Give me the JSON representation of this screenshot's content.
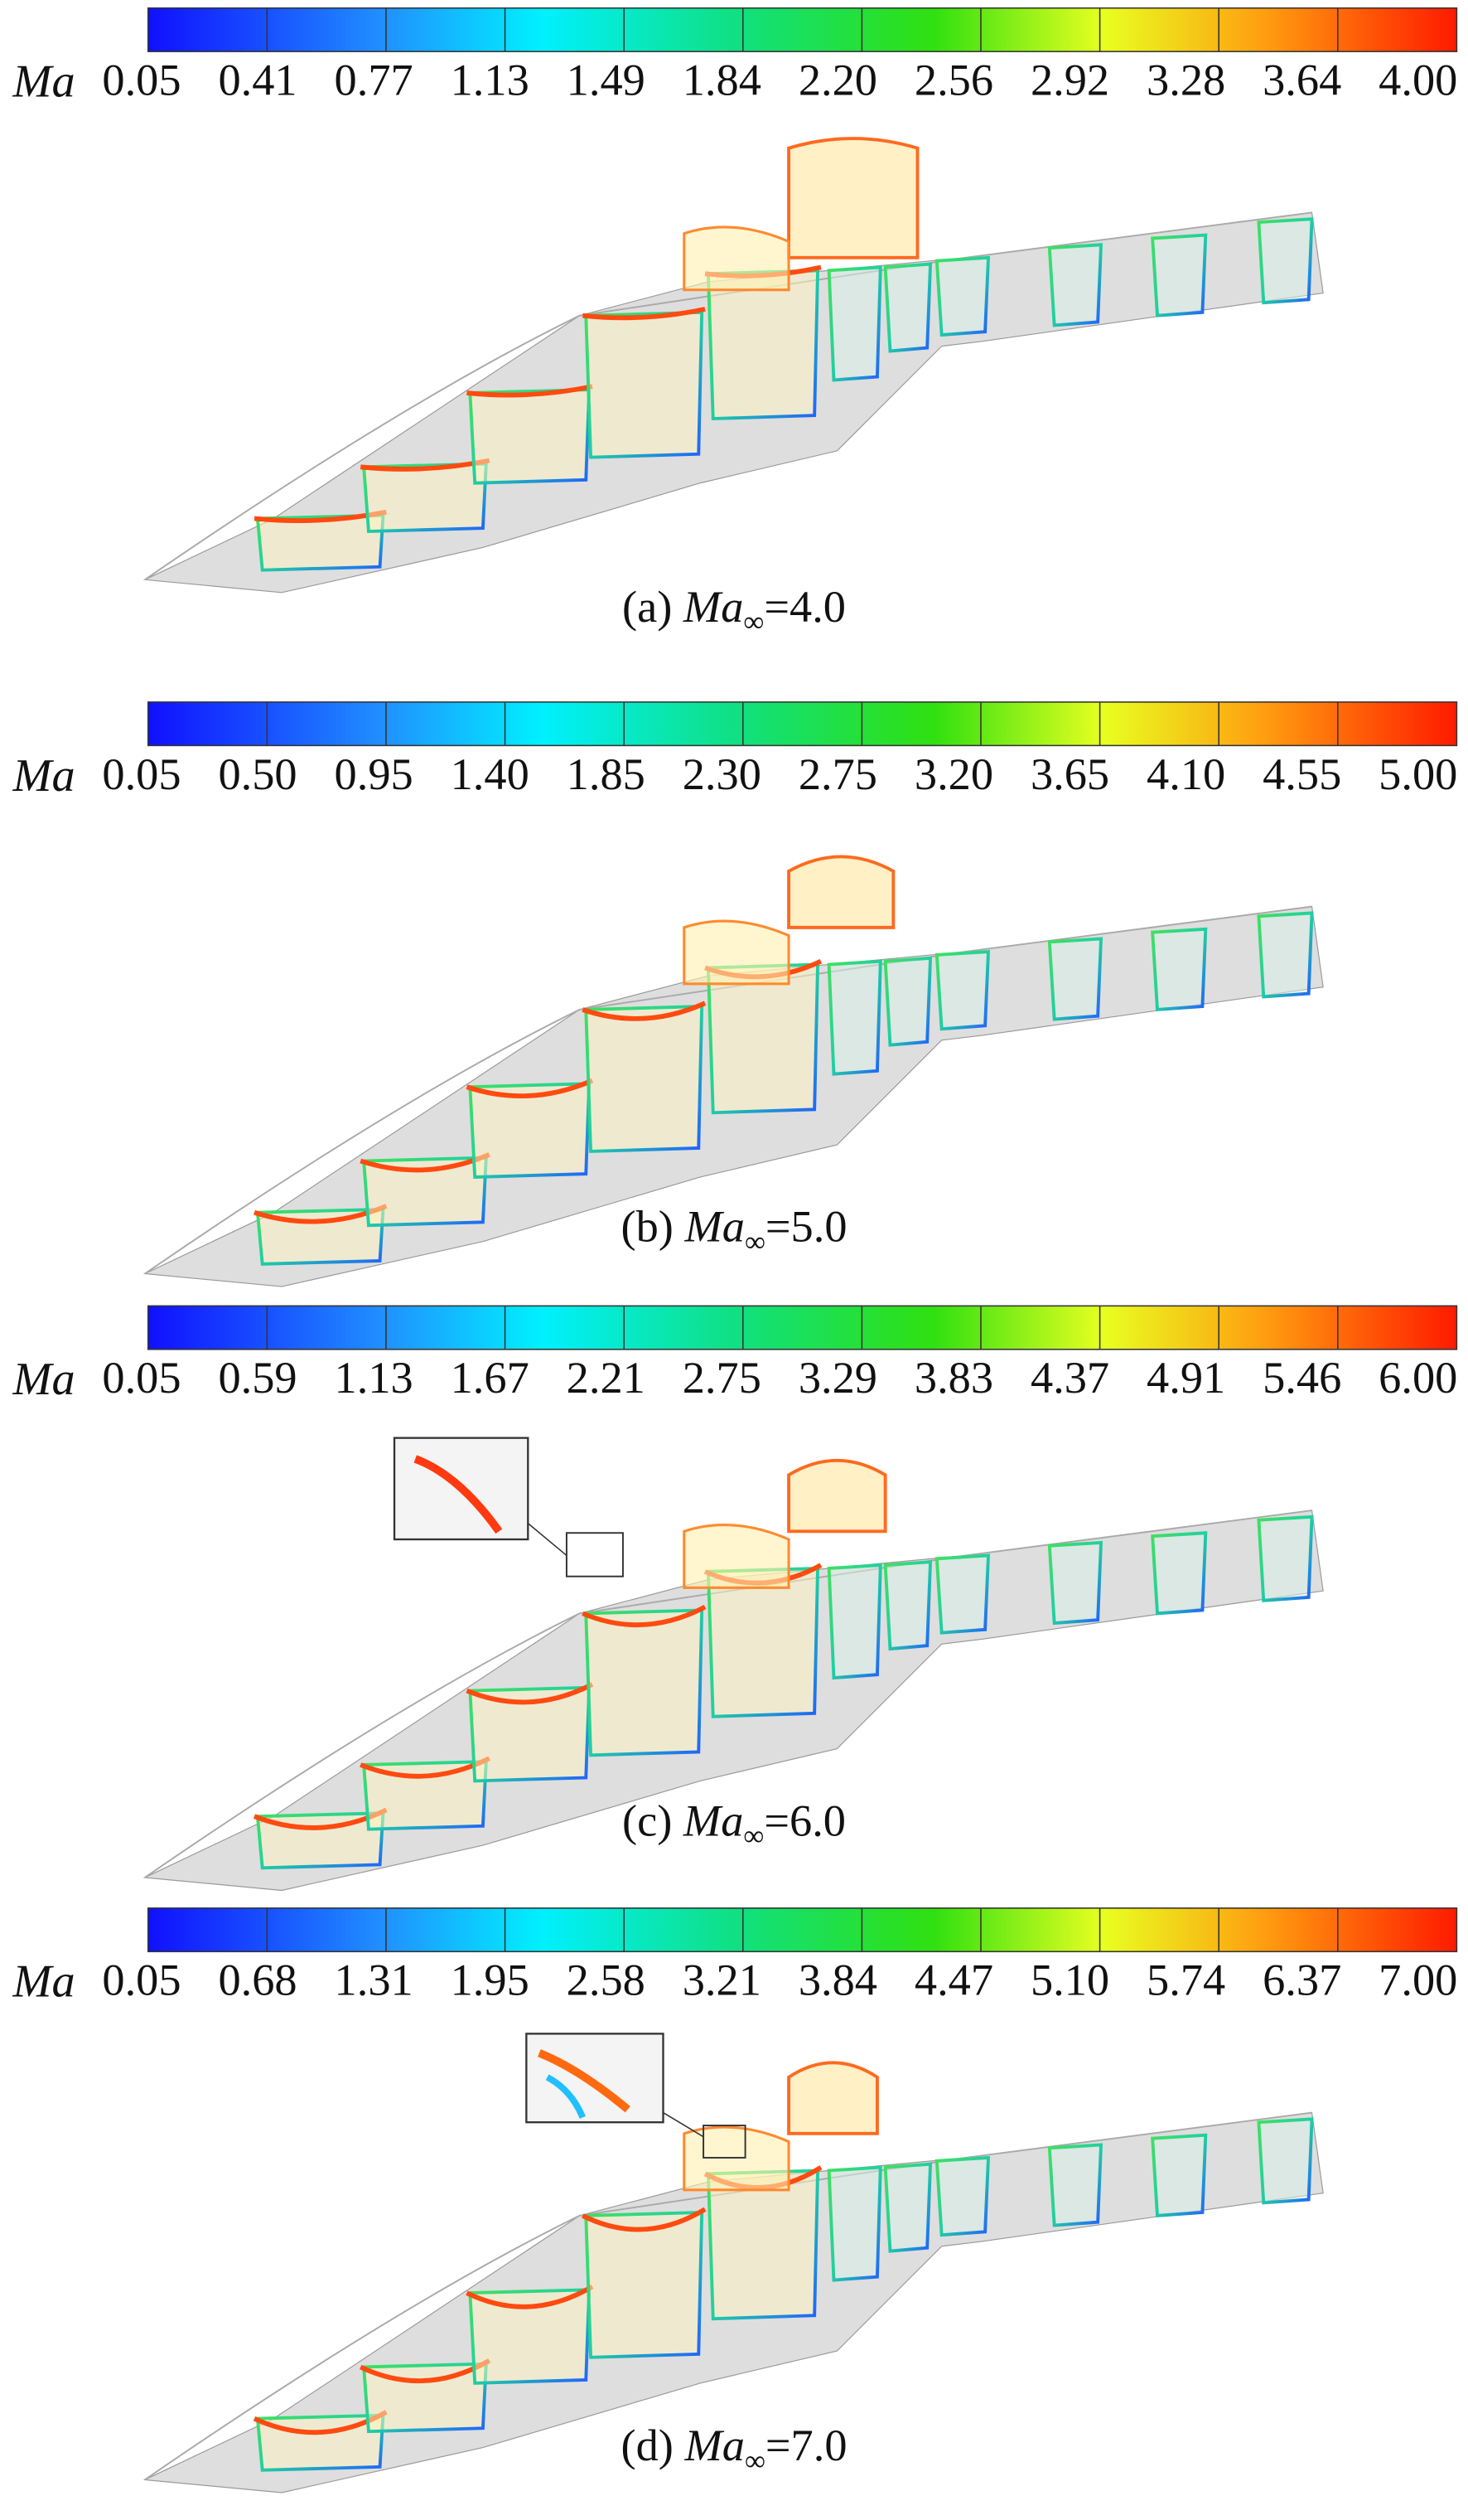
{
  "panels": [
    {
      "colorbar": {
        "label": "Ma",
        "ticks": [
          "0.05",
          "0.41",
          "0.77",
          "1.13",
          "1.49",
          "1.84",
          "2.20",
          "2.56",
          "2.92",
          "3.28",
          "3.64",
          "4.00"
        ]
      },
      "caption": {
        "prefix": "(a)",
        "symbol": "Ma",
        "subscript": "∞",
        "suffix": "=4.0"
      }
    },
    {
      "colorbar": {
        "label": "Ma",
        "ticks": [
          "0.05",
          "0.50",
          "0.95",
          "1.40",
          "1.85",
          "2.30",
          "2.75",
          "3.20",
          "3.65",
          "4.10",
          "4.55",
          "5.00"
        ]
      },
      "caption": {
        "prefix": "(b)",
        "symbol": "Ma",
        "subscript": "∞",
        "suffix": "=5.0"
      }
    },
    {
      "colorbar": {
        "label": "Ma",
        "ticks": [
          "0.05",
          "0.59",
          "1.13",
          "1.67",
          "2.21",
          "2.75",
          "3.29",
          "3.83",
          "4.37",
          "4.91",
          "5.46",
          "6.00"
        ]
      },
      "caption": {
        "prefix": "(c)",
        "symbol": "Ma",
        "subscript": "∞",
        "suffix": "=6.0"
      }
    },
    {
      "colorbar": {
        "label": "Ma",
        "ticks": [
          "0.05",
          "0.68",
          "1.31",
          "1.95",
          "2.58",
          "3.21",
          "3.84",
          "4.47",
          "5.10",
          "5.74",
          "6.37",
          "7.00"
        ]
      },
      "caption": {
        "prefix": "(d)",
        "symbol": "Ma",
        "subscript": "∞",
        "suffix": "=7.0"
      }
    }
  ]
}
